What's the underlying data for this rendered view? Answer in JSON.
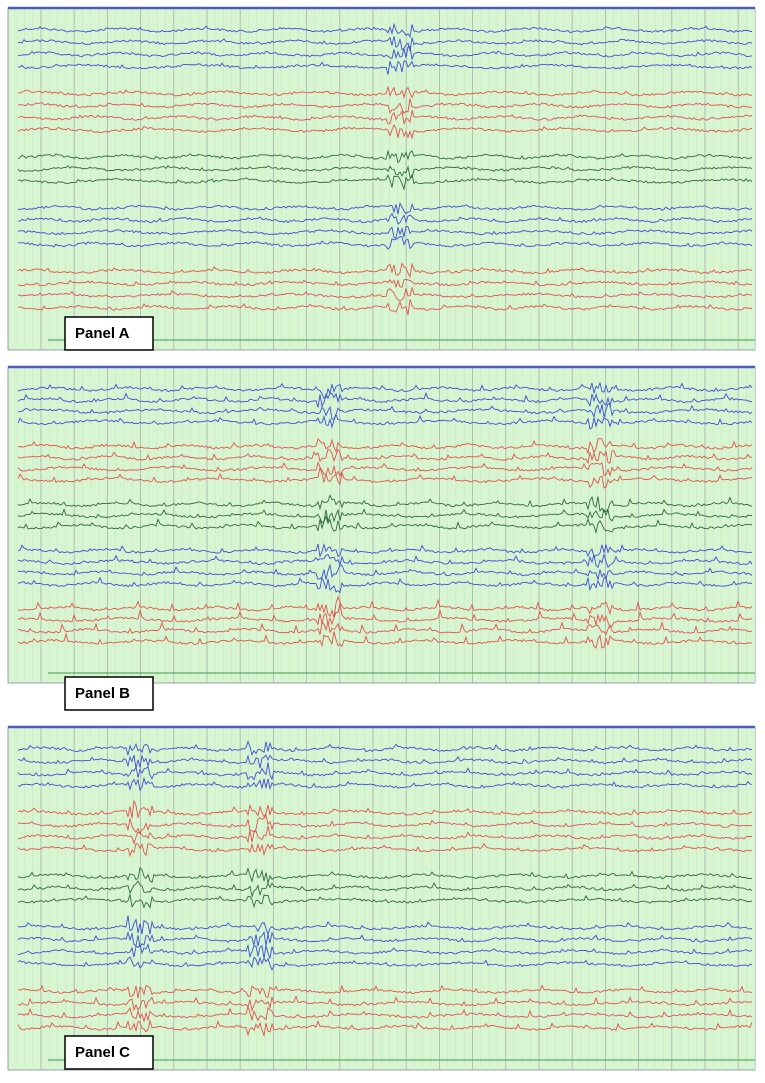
{
  "panels": [
    {
      "label": "Panel A"
    },
    {
      "label": "Panel B"
    },
    {
      "label": "Panel C"
    }
  ]
}
